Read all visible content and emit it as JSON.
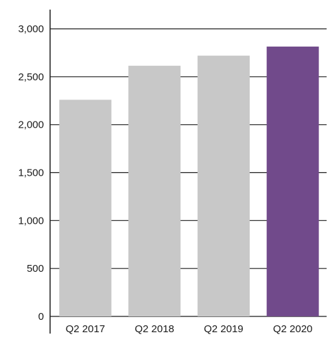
{
  "chart_data": {
    "type": "bar",
    "categories": [
      "Q2 2017",
      "Q2 2018",
      "Q2 2019",
      "Q2 2020"
    ],
    "values": [
      2260,
      2615,
      2720,
      2815
    ],
    "ylim": [
      0,
      3000
    ],
    "yticks": [
      0,
      500,
      1000,
      1500,
      2000,
      2500,
      3000
    ],
    "ytick_labels": [
      "0",
      "500",
      "1,000",
      "1,500",
      "2,000",
      "2,500",
      "3,000"
    ],
    "grid": true,
    "colors": {
      "default_bar": "#c8c8c8",
      "highlight_bar": "#714a8b",
      "grid": "#1a1a1a"
    },
    "highlight_index": 3
  }
}
